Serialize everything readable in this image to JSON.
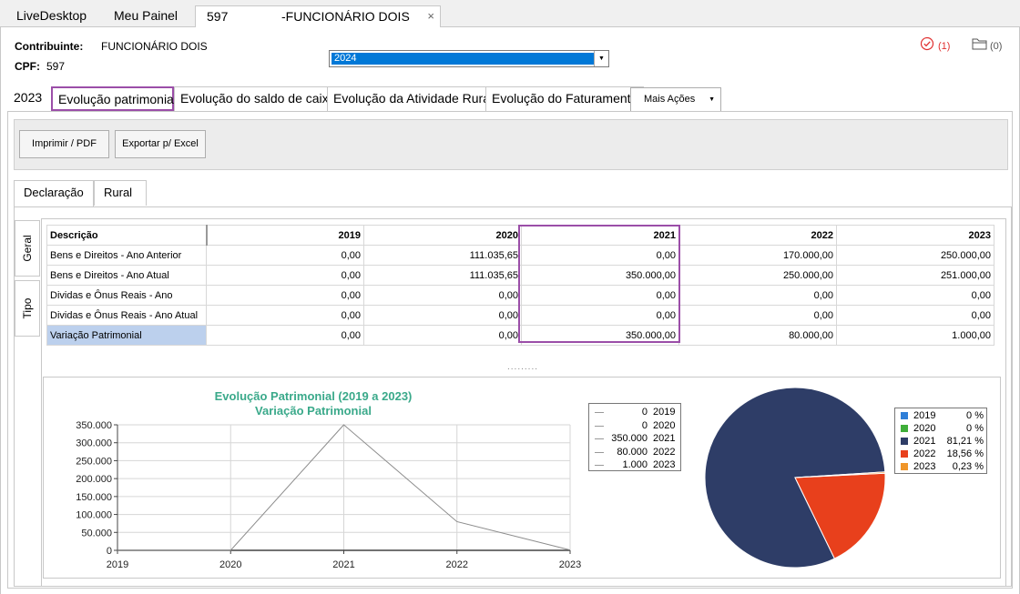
{
  "top_tabs": [
    {
      "label": "LiveDesktop"
    },
    {
      "label": "Meu Painel"
    },
    {
      "id": "597",
      "label": "-FUNCIONÁRIO DOIS",
      "close": "×"
    }
  ],
  "header": {
    "contribuinte_label": "Contribuinte:",
    "contribuinte_value": "FUNCIONÁRIO DOIS",
    "cpf_label": "CPF:",
    "cpf_value": "597",
    "year_selected": "2024",
    "alerts_count": "(1)",
    "folder_count": "(0)"
  },
  "section_tabs": {
    "year": "2023",
    "items": [
      "Evolução patrimonial",
      "Evolução do saldo de caixa",
      "Evolução da Atividade Rural",
      "Evolução do Faturamento"
    ],
    "more_actions": "Mais Ações"
  },
  "toolbar": {
    "print_label": "Imprimir / PDF",
    "export_label": "Exportar p/ Excel"
  },
  "sub_tabs": [
    "Declaração",
    "Rural"
  ],
  "vertical_tabs": [
    "Geral",
    "Tipo"
  ],
  "table": {
    "headers": [
      "Descrição",
      "2019",
      "2020",
      "2021",
      "2022",
      "2023"
    ],
    "rows": [
      [
        "Bens e Direitos - Ano Anterior",
        "0,00",
        "111.035,65",
        "0,00",
        "170.000,00",
        "250.000,00"
      ],
      [
        "Bens e Direitos - Ano Atual",
        "0,00",
        "111.035,65",
        "350.000,00",
        "250.000,00",
        "251.000,00"
      ],
      [
        "Dividas e Ônus Reais - Ano",
        "0,00",
        "0,00",
        "0,00",
        "0,00",
        "0,00"
      ],
      [
        "Dividas e Ônus Reais - Ano Atual",
        "0,00",
        "0,00",
        "0,00",
        "0,00",
        "0,00"
      ],
      [
        "Variação Patrimonial",
        "0,00",
        "0,00",
        "350.000,00",
        "80.000,00",
        "1.000,00"
      ]
    ]
  },
  "splitter": ".........",
  "chart_data": [
    {
      "type": "line",
      "title": "Evolução Patrimonial (2019 a 2023)",
      "subtitle": "Variação Patrimonial",
      "x": [
        "2019",
        "2020",
        "2021",
        "2022",
        "2023"
      ],
      "y": [
        0,
        0,
        350000,
        80000,
        1000
      ],
      "yticks": [
        "350.000",
        "300.000",
        "250.000",
        "200.000",
        "150.000",
        "100.000",
        "50.000",
        "0"
      ],
      "ylim": [
        0,
        350000
      ],
      "grid": true,
      "legend": [
        {
          "value": "0",
          "year": "2019"
        },
        {
          "value": "0",
          "year": "2020"
        },
        {
          "value": "350.000",
          "year": "2021"
        },
        {
          "value": "80.000",
          "year": "2022"
        },
        {
          "value": "1.000",
          "year": "2023"
        }
      ],
      "line_color": "#8c8c8c",
      "title_color": "#3aa98a"
    },
    {
      "type": "pie",
      "slices": [
        {
          "label": "2019",
          "pct_text": "0 %",
          "value": 0,
          "color": "#2f7fd8"
        },
        {
          "label": "2020",
          "pct_text": "0 %",
          "value": 0,
          "color": "#3fae3a"
        },
        {
          "label": "2021",
          "pct_text": "81,21 %",
          "value": 81.21,
          "color": "#2e3d67"
        },
        {
          "label": "2022",
          "pct_text": "18,56 %",
          "value": 18.56,
          "color": "#e8401c"
        },
        {
          "label": "2023",
          "pct_text": "0,23 %",
          "value": 0.23,
          "color": "#f0962a"
        }
      ],
      "legend_position": "right"
    }
  ]
}
